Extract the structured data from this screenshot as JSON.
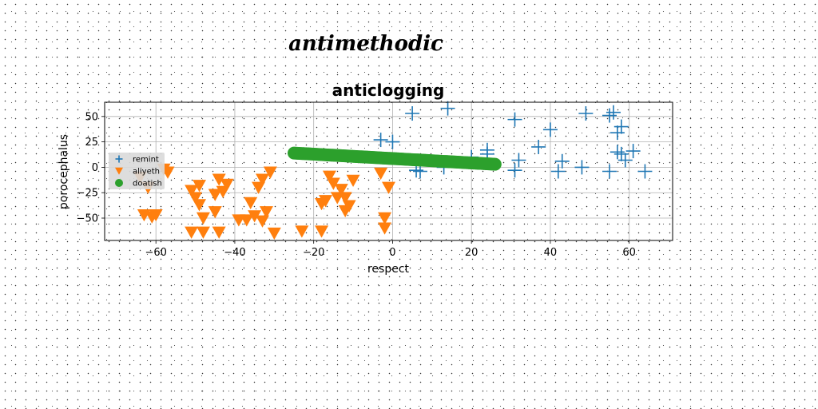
{
  "figure": {
    "suptitle": "antimethodic"
  },
  "chart_data": {
    "type": "scatter",
    "title": "anticlogging",
    "xlabel": "respect",
    "ylabel": "porocephalus",
    "xlim": [
      -73,
      71
    ],
    "ylim": [
      -72,
      64
    ],
    "xticks": [
      -60,
      -40,
      -20,
      0,
      20,
      40,
      60
    ],
    "yticks": [
      -50,
      -25,
      0,
      25,
      50
    ],
    "xtick_labels": [
      "−60",
      "−40",
      "−20",
      "0",
      "20",
      "40",
      "60"
    ],
    "ytick_labels": [
      "−50",
      "−25",
      "0",
      "25",
      "50"
    ],
    "grid": true,
    "legend_position": "center-left",
    "series": [
      {
        "name": "remint",
        "marker": "plus",
        "color": "#1f77b4",
        "points": [
          [
            5,
            53
          ],
          [
            14,
            58
          ],
          [
            -3,
            27
          ],
          [
            0,
            25
          ],
          [
            6,
            -3
          ],
          [
            7,
            -4
          ],
          [
            20,
            10
          ],
          [
            24,
            17
          ],
          [
            24,
            13
          ],
          [
            31,
            47
          ],
          [
            32,
            7
          ],
          [
            31,
            -3
          ],
          [
            37,
            20
          ],
          [
            40,
            37
          ],
          [
            42,
            -4
          ],
          [
            43,
            6
          ],
          [
            48,
            0
          ],
          [
            49,
            53
          ],
          [
            55,
            51
          ],
          [
            56,
            54
          ],
          [
            55,
            -4
          ],
          [
            57,
            34
          ],
          [
            58,
            40
          ],
          [
            58,
            13
          ],
          [
            57,
            15
          ],
          [
            59,
            7
          ],
          [
            61,
            16
          ],
          [
            64,
            -4
          ],
          [
            13,
            0
          ]
        ]
      },
      {
        "name": "aliyeth",
        "marker": "triangle_down",
        "color": "#ff7f0e",
        "points": [
          [
            -64,
            -10
          ],
          [
            -62,
            -20
          ],
          [
            -63,
            -47
          ],
          [
            -61,
            -49
          ],
          [
            -60,
            -47
          ],
          [
            -57,
            -5
          ],
          [
            -58,
            -2
          ],
          [
            -51,
            -23
          ],
          [
            -49,
            -18
          ],
          [
            -50,
            -30
          ],
          [
            -49,
            -37
          ],
          [
            -48,
            -50
          ],
          [
            -51,
            -64
          ],
          [
            -48,
            -64
          ],
          [
            -45,
            -44
          ],
          [
            -44,
            -64
          ],
          [
            -45,
            -27
          ],
          [
            -43,
            -24
          ],
          [
            -44,
            -12
          ],
          [
            -42,
            -17
          ],
          [
            -39,
            -52
          ],
          [
            -36,
            -35
          ],
          [
            -37,
            -52
          ],
          [
            -35,
            -48
          ],
          [
            -34,
            -20
          ],
          [
            -33,
            -12
          ],
          [
            -33,
            -53
          ],
          [
            -32,
            -44
          ],
          [
            -31,
            -5
          ],
          [
            -30,
            -65
          ],
          [
            -23,
            -63
          ],
          [
            -18,
            -63
          ],
          [
            -18,
            -36
          ],
          [
            -17,
            -33
          ],
          [
            -16,
            -9
          ],
          [
            -15,
            -16
          ],
          [
            -14,
            -30
          ],
          [
            -13,
            -22
          ],
          [
            -12,
            -30
          ],
          [
            -12,
            -43
          ],
          [
            -11,
            -38
          ],
          [
            -10,
            -13
          ],
          [
            -3,
            -6
          ],
          [
            -2,
            -50
          ],
          [
            -2,
            -60
          ],
          [
            -1,
            -20
          ]
        ]
      },
      {
        "name": "doatish",
        "marker": "circle",
        "color": "#2ca02c",
        "line": {
          "x_start": -25,
          "y_start": 14,
          "x_end": 26,
          "y_end": 3,
          "count": 120
        }
      }
    ]
  }
}
